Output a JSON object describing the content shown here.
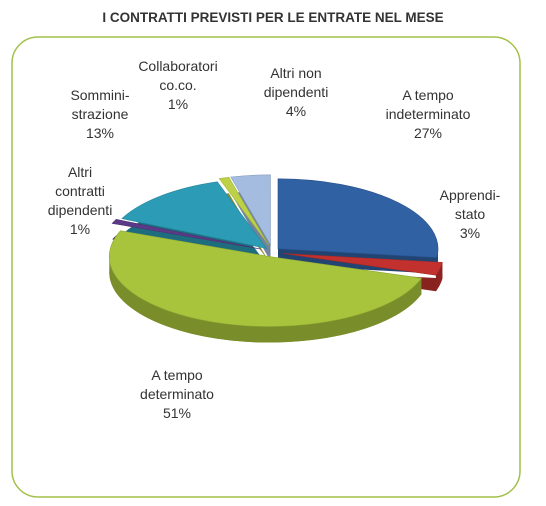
{
  "chart_data": {
    "type": "pie",
    "title": "I CONTRATTI PREVISTI PER LE ENTRATE NEL MESE",
    "categories": [
      "A tempo\nindeterminato",
      "Apprendi-\nstato",
      "A tempo\ndeterminato",
      "Altri\ncontratti\ndipendenti",
      "Sommini-\nstrazione",
      "Collaboratori\nco.co.",
      "Altri non\ndipendenti"
    ],
    "values": [
      27,
      3,
      51,
      1,
      13,
      1,
      4
    ],
    "value_labels": [
      "27%",
      "3%",
      "51%",
      "1%",
      "13%",
      "1%",
      "4%"
    ],
    "colors": [
      "#2f61a3",
      "#c2312d",
      "#a8c43c",
      "#5b3a87",
      "#2b9bb6",
      "#bdd146",
      "#a3bce0"
    ]
  }
}
